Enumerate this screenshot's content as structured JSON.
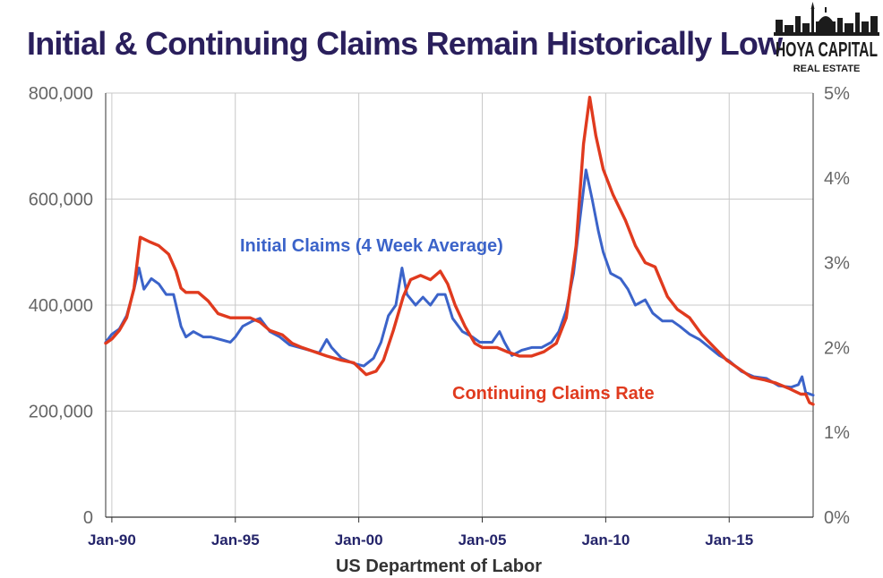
{
  "title": "Initial & Continuing Claims Remain Historically Low",
  "logo": {
    "line1": "HOYA CAPITAL",
    "line2": "REAL ESTATE"
  },
  "source": "US Department of Labor",
  "colors": {
    "initial": "#3b63c9",
    "continuing": "#e03a1e",
    "title": "#2a1f5c",
    "grid": "#c8c8c8"
  },
  "chart_data": {
    "type": "line",
    "x_range": [
      1989.75,
      2018.4
    ],
    "grid": true,
    "x_ticks": [
      {
        "value": 1990,
        "label": "Jan-90"
      },
      {
        "value": 1995,
        "label": "Jan-95"
      },
      {
        "value": 2000,
        "label": "Jan-00"
      },
      {
        "value": 2005,
        "label": "Jan-05"
      },
      {
        "value": 2010,
        "label": "Jan-10"
      },
      {
        "value": 2015,
        "label": "Jan-15"
      }
    ],
    "y_left": {
      "range": [
        0,
        800000
      ],
      "ticks": [
        {
          "value": 0,
          "label": "0"
        },
        {
          "value": 200000,
          "label": "200,000"
        },
        {
          "value": 400000,
          "label": "400,000"
        },
        {
          "value": 600000,
          "label": "600,000"
        },
        {
          "value": 800000,
          "label": "800,000"
        }
      ]
    },
    "y_right": {
      "range": [
        0,
        5
      ],
      "ticks": [
        {
          "value": 0,
          "label": "0%"
        },
        {
          "value": 1,
          "label": "1%"
        },
        {
          "value": 2,
          "label": "2%"
        },
        {
          "value": 3,
          "label": "3%"
        },
        {
          "value": 4,
          "label": "4%"
        },
        {
          "value": 5,
          "label": "5%"
        }
      ]
    },
    "series": [
      {
        "name": "Initial Claims (4 Week Average)",
        "axis": "left",
        "points": [
          [
            1989.75,
            330000
          ],
          [
            1990.0,
            345000
          ],
          [
            1990.3,
            355000
          ],
          [
            1990.6,
            380000
          ],
          [
            1990.9,
            430000
          ],
          [
            1991.1,
            470000
          ],
          [
            1991.3,
            430000
          ],
          [
            1991.6,
            450000
          ],
          [
            1991.9,
            440000
          ],
          [
            1992.2,
            420000
          ],
          [
            1992.5,
            420000
          ],
          [
            1992.8,
            360000
          ],
          [
            1993.0,
            340000
          ],
          [
            1993.3,
            350000
          ],
          [
            1993.7,
            340000
          ],
          [
            1994.0,
            340000
          ],
          [
            1994.4,
            335000
          ],
          [
            1994.8,
            330000
          ],
          [
            1995.0,
            340000
          ],
          [
            1995.3,
            360000
          ],
          [
            1995.7,
            370000
          ],
          [
            1996.0,
            375000
          ],
          [
            1996.4,
            350000
          ],
          [
            1996.8,
            340000
          ],
          [
            1997.2,
            325000
          ],
          [
            1997.6,
            320000
          ],
          [
            1998.0,
            315000
          ],
          [
            1998.4,
            310000
          ],
          [
            1998.7,
            335000
          ],
          [
            1998.9,
            320000
          ],
          [
            1999.3,
            300000
          ],
          [
            1999.8,
            290000
          ],
          [
            2000.2,
            285000
          ],
          [
            2000.6,
            300000
          ],
          [
            2000.9,
            330000
          ],
          [
            2001.2,
            380000
          ],
          [
            2001.5,
            400000
          ],
          [
            2001.75,
            470000
          ],
          [
            2001.95,
            420000
          ],
          [
            2002.3,
            400000
          ],
          [
            2002.6,
            415000
          ],
          [
            2002.9,
            400000
          ],
          [
            2003.2,
            420000
          ],
          [
            2003.5,
            420000
          ],
          [
            2003.8,
            375000
          ],
          [
            2004.2,
            350000
          ],
          [
            2004.6,
            340000
          ],
          [
            2004.9,
            330000
          ],
          [
            2005.2,
            330000
          ],
          [
            2005.4,
            330000
          ],
          [
            2005.7,
            350000
          ],
          [
            2005.9,
            330000
          ],
          [
            2006.2,
            305000
          ],
          [
            2006.6,
            315000
          ],
          [
            2007.0,
            320000
          ],
          [
            2007.4,
            320000
          ],
          [
            2007.8,
            330000
          ],
          [
            2008.1,
            350000
          ],
          [
            2008.4,
            390000
          ],
          [
            2008.7,
            460000
          ],
          [
            2008.95,
            560000
          ],
          [
            2009.2,
            655000
          ],
          [
            2009.45,
            600000
          ],
          [
            2009.7,
            540000
          ],
          [
            2009.9,
            500000
          ],
          [
            2010.2,
            460000
          ],
          [
            2010.6,
            450000
          ],
          [
            2010.9,
            430000
          ],
          [
            2011.2,
            400000
          ],
          [
            2011.6,
            410000
          ],
          [
            2011.9,
            385000
          ],
          [
            2012.3,
            370000
          ],
          [
            2012.7,
            370000
          ],
          [
            2013.0,
            360000
          ],
          [
            2013.4,
            345000
          ],
          [
            2013.8,
            335000
          ],
          [
            2014.2,
            320000
          ],
          [
            2014.6,
            305000
          ],
          [
            2015.0,
            295000
          ],
          [
            2015.5,
            275000
          ],
          [
            2016.0,
            265000
          ],
          [
            2016.5,
            262000
          ],
          [
            2017.0,
            248000
          ],
          [
            2017.5,
            245000
          ],
          [
            2017.8,
            250000
          ],
          [
            2017.95,
            265000
          ],
          [
            2018.1,
            235000
          ],
          [
            2018.4,
            230000
          ]
        ]
      },
      {
        "name": "Continuing Claims Rate",
        "axis": "right",
        "points": [
          [
            1989.75,
            2.05
          ],
          [
            1990.0,
            2.1
          ],
          [
            1990.3,
            2.2
          ],
          [
            1990.6,
            2.35
          ],
          [
            1990.9,
            2.7
          ],
          [
            1991.15,
            3.3
          ],
          [
            1991.5,
            3.25
          ],
          [
            1991.9,
            3.2
          ],
          [
            1992.3,
            3.1
          ],
          [
            1992.6,
            2.9
          ],
          [
            1992.8,
            2.7
          ],
          [
            1993.0,
            2.65
          ],
          [
            1993.5,
            2.65
          ],
          [
            1993.9,
            2.55
          ],
          [
            1994.3,
            2.4
          ],
          [
            1994.8,
            2.35
          ],
          [
            1995.2,
            2.35
          ],
          [
            1995.6,
            2.35
          ],
          [
            1996.0,
            2.3
          ],
          [
            1996.4,
            2.2
          ],
          [
            1996.9,
            2.15
          ],
          [
            1997.3,
            2.05
          ],
          [
            1997.7,
            2.0
          ],
          [
            1998.2,
            1.95
          ],
          [
            1998.7,
            1.9
          ],
          [
            1999.3,
            1.85
          ],
          [
            1999.8,
            1.82
          ],
          [
            2000.3,
            1.68
          ],
          [
            2000.7,
            1.72
          ],
          [
            2001.0,
            1.85
          ],
          [
            2001.4,
            2.2
          ],
          [
            2001.8,
            2.6
          ],
          [
            2002.1,
            2.8
          ],
          [
            2002.5,
            2.85
          ],
          [
            2002.9,
            2.8
          ],
          [
            2003.3,
            2.9
          ],
          [
            2003.6,
            2.75
          ],
          [
            2003.9,
            2.5
          ],
          [
            2004.3,
            2.25
          ],
          [
            2004.7,
            2.05
          ],
          [
            2005.0,
            2.0
          ],
          [
            2005.3,
            2.0
          ],
          [
            2005.6,
            2.0
          ],
          [
            2006.0,
            1.95
          ],
          [
            2006.5,
            1.9
          ],
          [
            2007.0,
            1.9
          ],
          [
            2007.5,
            1.95
          ],
          [
            2008.0,
            2.05
          ],
          [
            2008.4,
            2.35
          ],
          [
            2008.8,
            3.2
          ],
          [
            2009.1,
            4.4
          ],
          [
            2009.35,
            4.95
          ],
          [
            2009.6,
            4.5
          ],
          [
            2009.9,
            4.1
          ],
          [
            2010.3,
            3.8
          ],
          [
            2010.8,
            3.5
          ],
          [
            2011.2,
            3.2
          ],
          [
            2011.6,
            3.0
          ],
          [
            2012.0,
            2.95
          ],
          [
            2012.5,
            2.6
          ],
          [
            2012.9,
            2.45
          ],
          [
            2013.4,
            2.35
          ],
          [
            2013.9,
            2.15
          ],
          [
            2014.4,
            2.0
          ],
          [
            2014.9,
            1.85
          ],
          [
            2015.4,
            1.75
          ],
          [
            2015.9,
            1.65
          ],
          [
            2016.4,
            1.62
          ],
          [
            2016.9,
            1.58
          ],
          [
            2017.4,
            1.52
          ],
          [
            2017.9,
            1.45
          ],
          [
            2018.1,
            1.45
          ],
          [
            2018.25,
            1.35
          ],
          [
            2018.4,
            1.33
          ]
        ]
      }
    ]
  }
}
